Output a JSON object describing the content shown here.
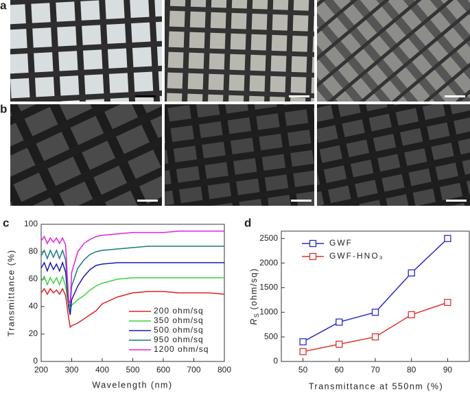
{
  "panel_labels": {
    "a": "a",
    "b": "b",
    "c": "c",
    "d": "d"
  },
  "chart_data": [
    {
      "type": "line",
      "xlabel": "Wavelength (nm)",
      "ylabel": "Transmittance (%)",
      "x": [
        200,
        210,
        220,
        230,
        240,
        250,
        260,
        270,
        280,
        290,
        295,
        300,
        320,
        340,
        360,
        380,
        400,
        450,
        500,
        550,
        600,
        650,
        700,
        750,
        800
      ],
      "xlim": [
        200,
        800
      ],
      "ylim": [
        0,
        100
      ],
      "xticks": [
        200,
        300,
        400,
        500,
        600,
        700,
        800
      ],
      "yticks": [
        0,
        20,
        40,
        60,
        80,
        100
      ],
      "legend": "lower right",
      "markers": false,
      "series": [
        {
          "name": "200 ohm/sq",
          "color": "#e02020",
          "values": [
            50,
            53,
            49,
            53,
            50,
            52,
            49,
            53,
            48,
            32,
            25,
            26,
            28,
            31,
            34,
            37,
            42,
            47,
            50,
            51,
            51,
            50,
            50,
            50,
            49
          ]
        },
        {
          "name": "350 ohm/sq",
          "color": "#3ad13a",
          "values": [
            58,
            62,
            56,
            61,
            57,
            61,
            56,
            62,
            55,
            40,
            38,
            41,
            45,
            48,
            52,
            55,
            57,
            60,
            61,
            61,
            61,
            61,
            61,
            61,
            61
          ]
        },
        {
          "name": "500 ohm/sq",
          "color": "#1a1aa8",
          "values": [
            68,
            72,
            66,
            72,
            67,
            71,
            66,
            72,
            65,
            40,
            34,
            45,
            55,
            62,
            67,
            70,
            71,
            72,
            72,
            72,
            72,
            72,
            72,
            72,
            72
          ]
        },
        {
          "name": "950 ohm/sq",
          "color": "#1a7a7a",
          "values": [
            77,
            81,
            75,
            81,
            76,
            81,
            75,
            81,
            74,
            42,
            40,
            55,
            68,
            74,
            78,
            80,
            81,
            82,
            83,
            84,
            84,
            84,
            84,
            84,
            84
          ]
        },
        {
          "name": "1200 ohm/sq",
          "color": "#e020e0",
          "values": [
            88,
            91,
            86,
            90,
            87,
            90,
            86,
            90,
            85,
            45,
            42,
            65,
            80,
            86,
            89,
            91,
            92,
            93,
            94,
            94,
            94,
            95,
            95,
            95,
            95
          ]
        }
      ]
    },
    {
      "type": "line",
      "xlabel": "Transmittance at 550nm (%)",
      "ylabel": {
        "symbol": "R",
        "subscript": "S",
        "unit": "(ohm/sq)"
      },
      "x": [
        50,
        60,
        70,
        80,
        90
      ],
      "xlim": [
        44,
        96
      ],
      "ylim": [
        0,
        2650
      ],
      "xticks": [
        50,
        60,
        70,
        80,
        90
      ],
      "yticks": [
        0,
        500,
        1000,
        1500,
        2000,
        2500
      ],
      "legend": "upper left",
      "markers": true,
      "series": [
        {
          "name": "GWF",
          "color": "#2a2ac0",
          "values": [
            400,
            800,
            1000,
            1800,
            2500
          ]
        },
        {
          "name": "GWF-HNO₃",
          "color": "#e03030",
          "values": [
            200,
            350,
            500,
            950,
            1200
          ]
        }
      ]
    }
  ]
}
